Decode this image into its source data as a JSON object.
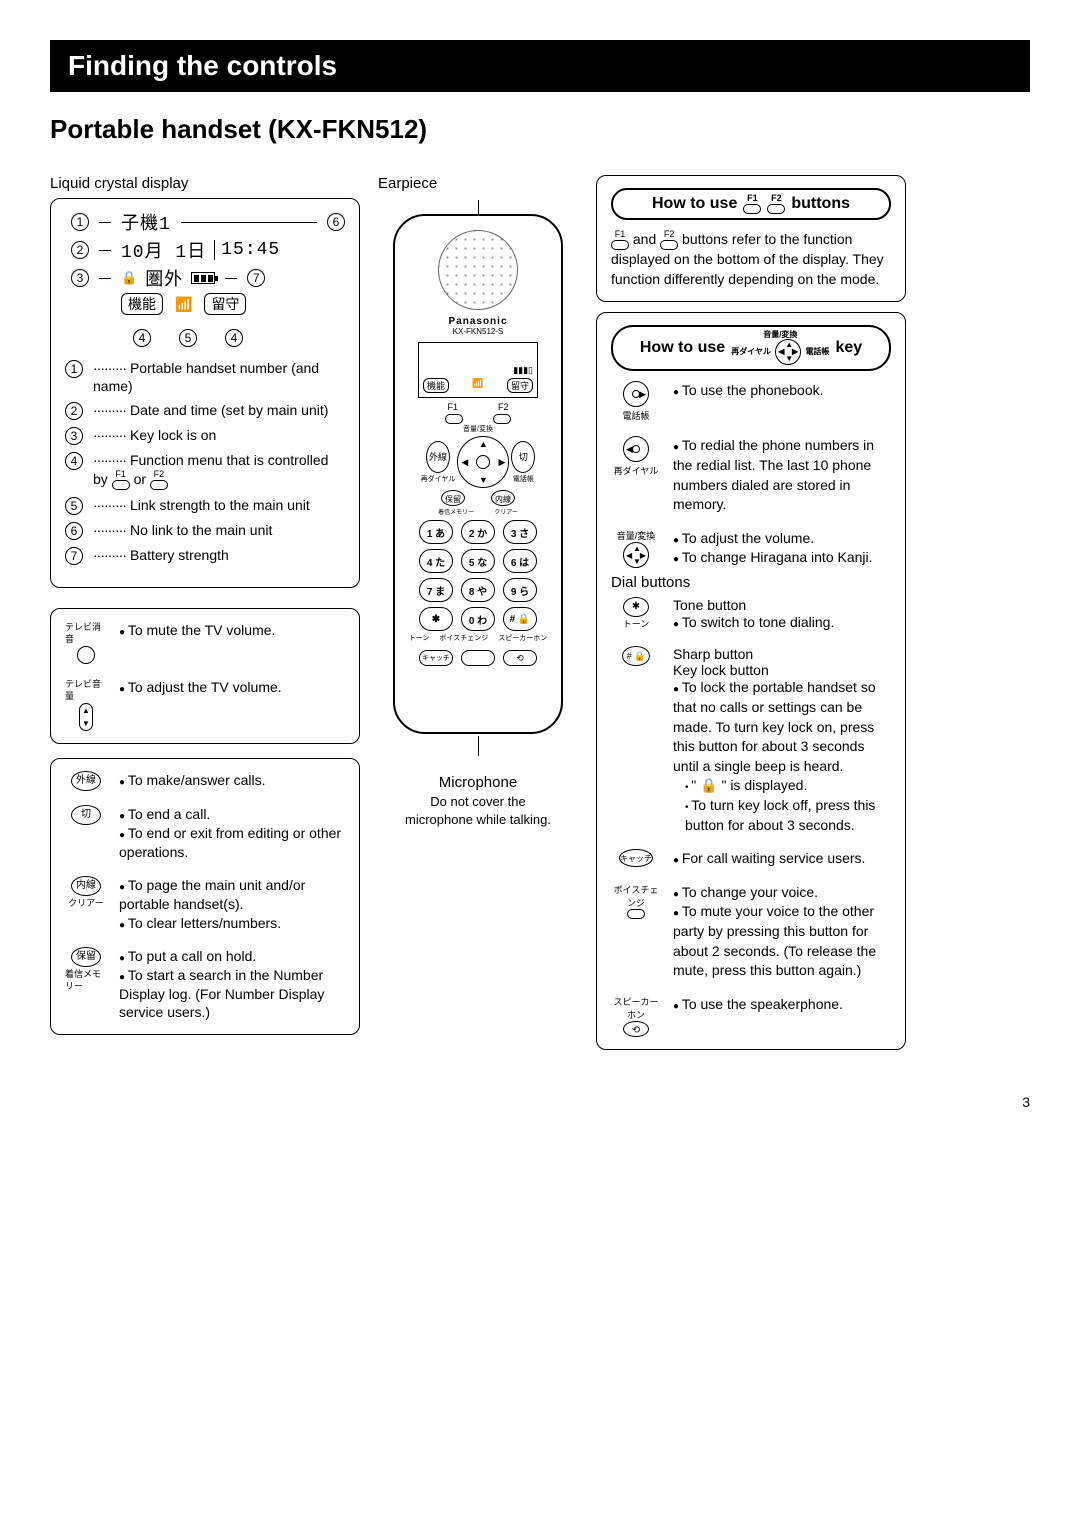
{
  "banner": "Finding the controls",
  "subtitle": "Portable handset (KX-FKN512)",
  "pagenum": "3",
  "left": {
    "lcd_label": "Liquid crystal display",
    "lcd": {
      "r1": "子機1",
      "r2a": "10月 1日",
      "r2b": "15:45",
      "r3": "圏外",
      "soft1": "機能",
      "soft2": "留守"
    },
    "items": [
      {
        "n": "1",
        "t": "Portable handset number (and name)"
      },
      {
        "n": "2",
        "t": "Date and time (set by main unit)"
      },
      {
        "n": "3",
        "t": "Key lock is on"
      },
      {
        "n": "4",
        "t": "Function menu that is controlled by"
      },
      {
        "n": "5",
        "t": "Link strength to the main unit"
      },
      {
        "n": "6",
        "t": "No link to the main unit"
      },
      {
        "n": "7",
        "t": "Battery strength"
      }
    ],
    "f1": "F1",
    "f2": "F2",
    "or": "or",
    "tv_mute_label": "テレビ消音",
    "tv_mute": "To mute the TV volume.",
    "tv_vol_label": "テレビ音量",
    "tv_vol": "To adjust the TV volume.",
    "btns": [
      {
        "icon": "外線",
        "sub": "",
        "lines": [
          "To make/answer calls."
        ]
      },
      {
        "icon": "切",
        "sub": "",
        "lines": [
          "To end a call.",
          "To end or exit from editing or other operations."
        ]
      },
      {
        "icon": "内線",
        "sub": "クリアー",
        "lines": [
          "To page the main unit and/or portable handset(s).",
          "To clear letters/numbers."
        ]
      },
      {
        "icon": "保留",
        "sub": "着信メモリー",
        "lines": [
          "To put a call on hold.",
          "To start a search in the Number Display log. (For Number Display service users.)"
        ]
      }
    ]
  },
  "mid": {
    "earpiece": "Earpiece",
    "brand": "Panasonic",
    "model": "KX-FKN512-S",
    "mic": "Microphone",
    "micnote": "Do not cover the microphone while talking.",
    "soft1": "機能",
    "soft2": "留守",
    "navtop": "音量/変換",
    "navL": "再ダイヤル",
    "navR": "電話帳",
    "sideL": "外線",
    "sideR": "切",
    "belowL": "保留",
    "belowR": "内線",
    "belowL2": "着信メモリー",
    "belowR2": "クリアー",
    "keys": [
      "1 あ",
      "2 か",
      "3 さ",
      "4 た",
      "5 な",
      "6 は",
      "7 ま",
      "8 や",
      "9 ら",
      "✱",
      "0 わ",
      "# 🔒"
    ],
    "klabelsL": "トーン",
    "klabelsM": "ボイスチェンジ",
    "klabelsR": "スピーカーホン",
    "bottom": [
      "キャッチ",
      "",
      "⟲"
    ]
  },
  "right": {
    "box1": {
      "title_a": "How to use",
      "title_b": "buttons",
      "body": " and  buttons refer to the function displayed on the bottom of the display. They function differently depending on the mode."
    },
    "box2": {
      "title_a": "How to use",
      "title_b": "key",
      "navtop": "音量/変換",
      "navL": "再ダイヤル",
      "navR": "電話帳",
      "rows": [
        {
          "side": "電話帳",
          "lines": [
            "To use the phonebook."
          ]
        },
        {
          "side": "再ダイヤル",
          "lines": [
            "To redial the phone numbers in the redial list. The last 10 phone numbers dialed are stored in memory."
          ]
        },
        {
          "side": "音量/変換",
          "lines": [
            "To adjust the volume.",
            "To change Hiragana into Kanji."
          ]
        }
      ],
      "dial_title": "Dial buttons",
      "tone_icon": "✱",
      "tone_sub": "トーン",
      "tone_title": "Tone button",
      "tone_line": "To switch to tone dialing.",
      "sharp_icon": "# 🔒",
      "sharp_title": "Sharp button",
      "sharp_title2": "Key lock button",
      "sharp_lines": [
        "To lock the portable handset so that no calls or settings can be made. To turn key lock on, press this button for about 3 seconds until a single beep is heard.",
        "\" 🔒 \" is displayed.",
        "To turn key lock off, press this button for about 3 seconds."
      ],
      "catch_icon": "キャッチ",
      "catch_line": "For call waiting service users.",
      "voice_label": "ボイスチェンジ",
      "voice_lines": [
        "To change your voice.",
        "To mute your voice to the other party by pressing this button for about 2 seconds. (To release the mute, press this button again.)"
      ],
      "spk_label": "スピーカーホン",
      "spk_line": "To use the speakerphone."
    }
  }
}
